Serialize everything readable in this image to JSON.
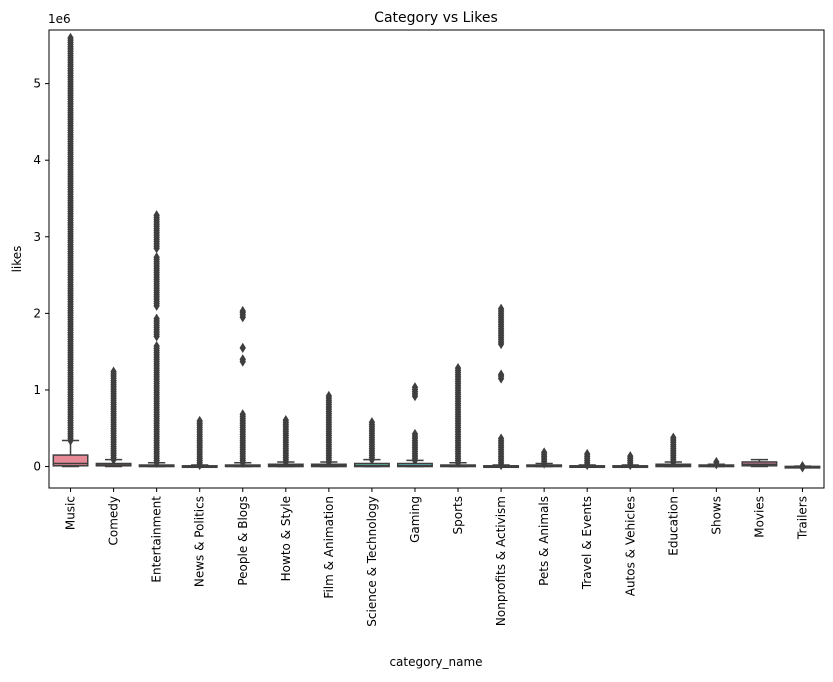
{
  "chart_data": {
    "type": "box",
    "title": "Category vs Likes",
    "xlabel": "category_name",
    "ylabel": "likes",
    "y_scale_label": "1e6",
    "y_multiplier": 1000000,
    "ylim": [
      -0.28,
      5.7
    ],
    "yticks": [
      0,
      1,
      2,
      3,
      4,
      5
    ],
    "grid": false,
    "outlier_marker": "diamond",
    "categories": [
      {
        "name": "Music",
        "color": "#e58a96",
        "q1": 0.01,
        "median": 0.04,
        "q3": 0.15,
        "whisker_low": 0.0,
        "whisker_high": 0.34,
        "outliers": {
          "dense": [
            [
              0.34,
              5.6
            ]
          ]
        }
      },
      {
        "name": "Comedy",
        "color": "#d8957a",
        "q1": 0.01,
        "median": 0.02,
        "q3": 0.04,
        "whisker_low": 0.0,
        "whisker_high": 0.09,
        "outliers": {
          "dense": [
            [
              0.09,
              1.25
            ]
          ]
        }
      },
      {
        "name": "Entertainment",
        "color": "#c79e6c",
        "q1": 0.0,
        "median": 0.01,
        "q3": 0.02,
        "whisker_low": 0.0,
        "whisker_high": 0.05,
        "outliers": {
          "dense": [
            [
              0.05,
              1.6
            ],
            [
              1.7,
              1.95
            ],
            [
              2.1,
              2.75
            ],
            [
              2.85,
              3.3
            ]
          ]
        }
      },
      {
        "name": "News & Politics",
        "color": "#b3a566",
        "q1": 0.0,
        "median": 0.0,
        "q3": 0.01,
        "whisker_low": 0.0,
        "whisker_high": 0.02,
        "outliers": {
          "dense": [
            [
              0.02,
              0.6
            ]
          ]
        }
      },
      {
        "name": "People & Blogs",
        "color": "#9aac68",
        "q1": 0.0,
        "median": 0.01,
        "q3": 0.02,
        "whisker_low": 0.0,
        "whisker_high": 0.05,
        "outliers": {
          "dense": [
            [
              0.05,
              0.7
            ]
          ],
          "points": [
            1.37,
            1.4,
            1.55,
            1.95,
            1.98,
            2.01,
            2.03
          ]
        }
      },
      {
        "name": "Howto & Style",
        "color": "#7cb36f",
        "q1": 0.0,
        "median": 0.01,
        "q3": 0.03,
        "whisker_low": 0.0,
        "whisker_high": 0.06,
        "outliers": {
          "dense": [
            [
              0.06,
              0.62
            ]
          ]
        }
      },
      {
        "name": "Film & Animation",
        "color": "#63b888",
        "q1": 0.0,
        "median": 0.01,
        "q3": 0.03,
        "whisker_low": 0.0,
        "whisker_high": 0.06,
        "outliers": {
          "dense": [
            [
              0.06,
              0.93
            ]
          ]
        }
      },
      {
        "name": "Science & Technology",
        "color": "#5cb6a2",
        "q1": 0.0,
        "median": 0.01,
        "q3": 0.04,
        "whisker_low": 0.0,
        "whisker_high": 0.09,
        "outliers": {
          "dense": [
            [
              0.09,
              0.58
            ]
          ]
        }
      },
      {
        "name": "Gaming",
        "color": "#5fb3b5",
        "q1": 0.0,
        "median": 0.01,
        "q3": 0.04,
        "whisker_low": 0.0,
        "whisker_high": 0.08,
        "outliers": {
          "dense": [
            [
              0.08,
              0.45
            ],
            [
              0.92,
              1.05
            ]
          ]
        }
      },
      {
        "name": "Sports",
        "color": "#63afc8",
        "q1": 0.0,
        "median": 0.01,
        "q3": 0.02,
        "whisker_low": 0.0,
        "whisker_high": 0.05,
        "outliers": {
          "dense": [
            [
              0.05,
              1.3
            ]
          ]
        }
      },
      {
        "name": "Nonprofits & Activism",
        "color": "#6ea8d9",
        "q1": 0.0,
        "median": 0.0,
        "q3": 0.01,
        "whisker_low": 0.0,
        "whisker_high": 0.02,
        "outliers": {
          "dense": [
            [
              0.02,
              0.37
            ],
            [
              1.6,
              2.07
            ]
          ],
          "points": [
            1.15,
            1.18,
            1.2
          ]
        }
      },
      {
        "name": "Pets & Animals",
        "color": "#95a0e3",
        "q1": 0.0,
        "median": 0.01,
        "q3": 0.02,
        "whisker_low": 0.0,
        "whisker_high": 0.04,
        "outliers": {
          "dense": [
            [
              0.04,
              0.2
            ]
          ]
        }
      },
      {
        "name": "Travel & Events",
        "color": "#b596e0",
        "q1": 0.0,
        "median": 0.0,
        "q3": 0.01,
        "whisker_low": 0.0,
        "whisker_high": 0.02,
        "outliers": {
          "dense": [
            [
              0.02,
              0.17
            ]
          ]
        }
      },
      {
        "name": "Autos & Vehicles",
        "color": "#cc8bd8",
        "q1": 0.0,
        "median": 0.0,
        "q3": 0.01,
        "whisker_low": 0.0,
        "whisker_high": 0.02,
        "outliers": {
          "dense": [
            [
              0.02,
              0.15
            ]
          ]
        }
      },
      {
        "name": "Education",
        "color": "#dc86c8",
        "q1": 0.0,
        "median": 0.01,
        "q3": 0.03,
        "whisker_low": 0.0,
        "whisker_high": 0.06,
        "outliers": {
          "dense": [
            [
              0.06,
              0.4
            ]
          ]
        }
      },
      {
        "name": "Shows",
        "color": "#e386b4",
        "q1": 0.0,
        "median": 0.01,
        "q3": 0.02,
        "whisker_low": 0.0,
        "whisker_high": 0.03,
        "outliers": {
          "dense": [
            [
              0.03,
              0.08
            ]
          ]
        }
      },
      {
        "name": "Movies",
        "color": "#e58aa3",
        "q1": 0.01,
        "median": 0.03,
        "q3": 0.06,
        "whisker_low": 0.0,
        "whisker_high": 0.09,
        "outliers": {}
      },
      {
        "name": "Trailers",
        "color": "#e68a8f",
        "q1": -0.005,
        "median": -0.002,
        "q3": 0.002,
        "whisker_low": -0.01,
        "whisker_high": 0.005,
        "outliers": {
          "points": [
            -0.01,
            0.0,
            0.005
          ]
        }
      }
    ]
  }
}
